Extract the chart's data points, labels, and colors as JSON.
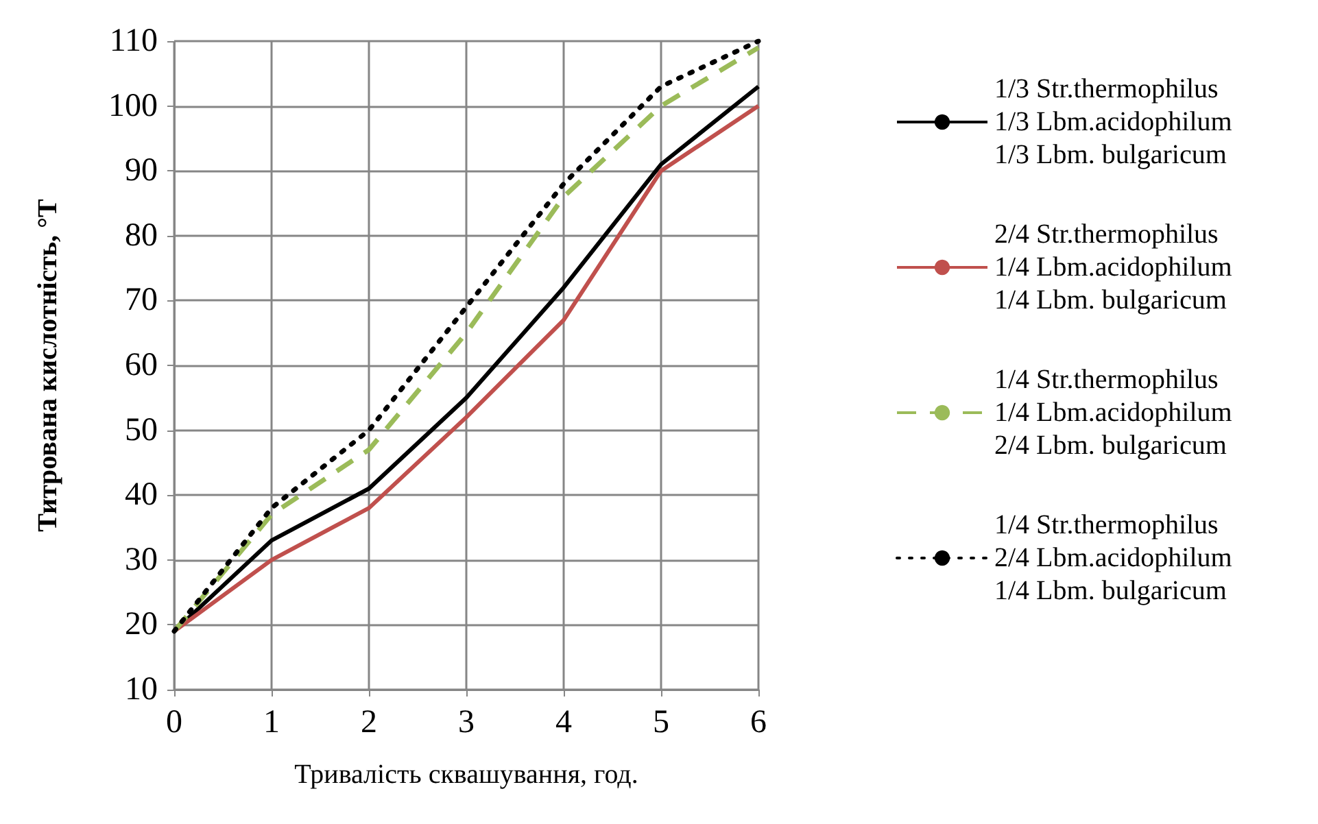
{
  "chart_data": {
    "type": "line",
    "xlabel": "Тривалість сквашування, год.",
    "ylabel": "Титрована кислотність, °Т",
    "x": [
      0,
      1,
      2,
      3,
      4,
      5,
      6
    ],
    "xlim": [
      0,
      6
    ],
    "xticks": [
      0,
      1,
      2,
      3,
      4,
      5,
      6
    ],
    "ylim": [
      10,
      110
    ],
    "yticks": [
      10,
      20,
      30,
      40,
      50,
      60,
      70,
      80,
      90,
      100,
      110
    ],
    "grid": true,
    "legend": "right",
    "marker": "none",
    "series": [
      {
        "name": "1/3 Str.thermophilus\n1/3 Lbm.acidophilum\n1/3 Lbm. bulgaricum",
        "color": "#000000",
        "line_style": "solid",
        "values": [
          19,
          33,
          41,
          55,
          72,
          91,
          103
        ]
      },
      {
        "name": "2/4 Str.thermophilus\n1/4 Lbm.acidophilum\n1/4 Lbm. bulgaricum",
        "color": "#c0504d",
        "line_style": "solid",
        "values": [
          19,
          30,
          38,
          52,
          67,
          90,
          100
        ]
      },
      {
        "name": "1/4 Str.thermophilus\n1/4 Lbm.acidophilum\n2/4 Lbm. bulgaricum",
        "color": "#9bbb59",
        "line_style": "dashed",
        "values": [
          19,
          37,
          47,
          65,
          86,
          100,
          109
        ]
      },
      {
        "name": "1/4 Str.thermophilus\n2/4 Lbm.acidophilum\n1/4 Lbm. bulgaricum",
        "color": "#000000",
        "line_style": "dotted",
        "values": [
          19,
          38,
          50,
          69,
          88,
          103,
          110
        ]
      }
    ]
  }
}
